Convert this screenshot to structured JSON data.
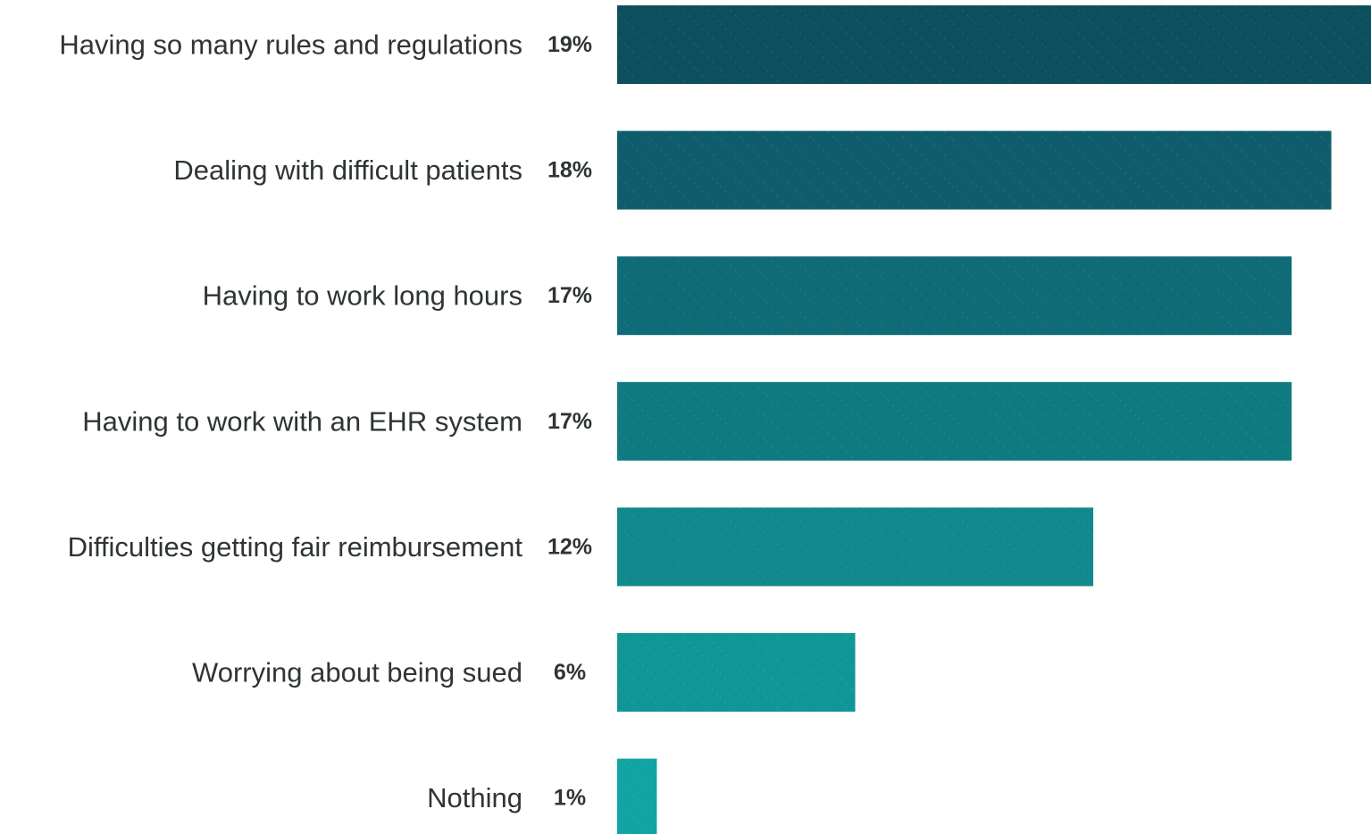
{
  "chart_data": {
    "type": "bar",
    "orientation": "horizontal",
    "categories": [
      "Having so many rules and regulations",
      "Dealing with difficult patients",
      "Having to work long hours",
      "Having to work with an EHR system",
      "Difficulties getting fair reimbursement",
      "Worrying about being sued",
      "Nothing"
    ],
    "values": [
      19,
      18,
      17,
      17,
      12,
      6,
      1
    ],
    "value_labels": [
      "19%",
      "18%",
      "17%",
      "17%",
      "12%",
      "6%",
      "1%"
    ],
    "unit": "%",
    "title": "",
    "xlabel": "",
    "ylabel": "",
    "xlim": [
      0,
      19
    ],
    "grid": false,
    "legend": "none",
    "colors": {
      "bar_dark": "#0e4f5e",
      "bar_light": "#11a4a3",
      "text": "#2f3436",
      "pattern": "#ffffff"
    }
  }
}
